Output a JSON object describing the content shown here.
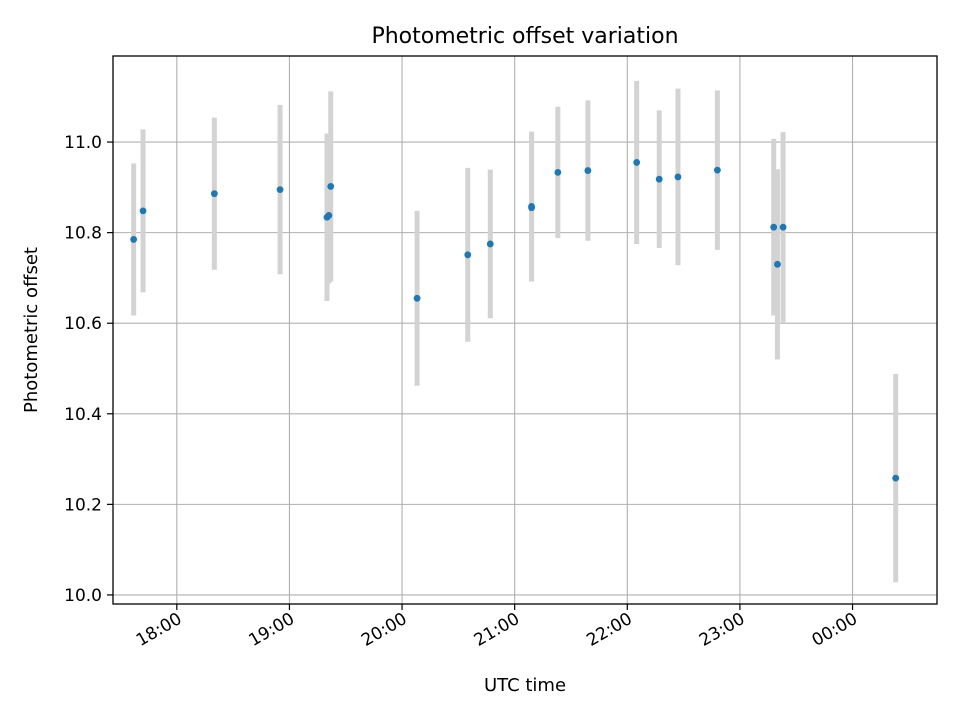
{
  "chart_data": {
    "type": "scatter",
    "title": "Photometric offset variation",
    "xlabel": "UTC time",
    "ylabel": "Photometric offset",
    "x_axis_type": "time",
    "xlim": [
      "17:26",
      "00:45"
    ],
    "ylim": [
      9.98,
      11.19
    ],
    "grid": true,
    "x_ticks": [
      "18:00",
      "19:00",
      "20:00",
      "21:00",
      "22:00",
      "23:00",
      "00:00"
    ],
    "y_ticks": [
      "10.0",
      "10.2",
      "10.4",
      "10.6",
      "10.8",
      "11.0"
    ],
    "colors": {
      "point": "#1f77b4",
      "errorbar": "#d3d3d3",
      "grid": "#b0b0b0"
    },
    "series": [
      {
        "points": [
          {
            "x": "17:37",
            "y": 10.785,
            "err": 0.168
          },
          {
            "x": "17:42",
            "y": 10.848,
            "err": 0.18
          },
          {
            "x": "18:20",
            "y": 10.886,
            "err": 0.168
          },
          {
            "x": "18:55",
            "y": 10.895,
            "err": 0.187
          },
          {
            "x": "19:20",
            "y": 10.834,
            "err": 0.185
          },
          {
            "x": "19:21",
            "y": 10.838,
            "err": 0.15
          },
          {
            "x": "19:22",
            "y": 10.902,
            "err": 0.21
          },
          {
            "x": "20:08",
            "y": 10.655,
            "err": 0.193
          },
          {
            "x": "20:35",
            "y": 10.751,
            "err": 0.192
          },
          {
            "x": "20:47",
            "y": 10.775,
            "err": 0.164
          },
          {
            "x": "21:09",
            "y": 10.858,
            "err": 0.165
          },
          {
            "x": "21:09",
            "y": 10.855,
            "err": 0.163
          },
          {
            "x": "21:23",
            "y": 10.933,
            "err": 0.145
          },
          {
            "x": "21:39",
            "y": 10.937,
            "err": 0.155
          },
          {
            "x": "22:05",
            "y": 10.955,
            "err": 0.18
          },
          {
            "x": "22:17",
            "y": 10.918,
            "err": 0.152
          },
          {
            "x": "22:27",
            "y": 10.923,
            "err": 0.195
          },
          {
            "x": "22:48",
            "y": 10.938,
            "err": 0.176
          },
          {
            "x": "23:18",
            "y": 10.812,
            "err": 0.195
          },
          {
            "x": "23:20",
            "y": 10.73,
            "err": 0.21
          },
          {
            "x": "23:23",
            "y": 10.812,
            "err": 0.21
          },
          {
            "x": "00:23",
            "y": 10.258,
            "err": 0.23
          }
        ]
      }
    ]
  }
}
